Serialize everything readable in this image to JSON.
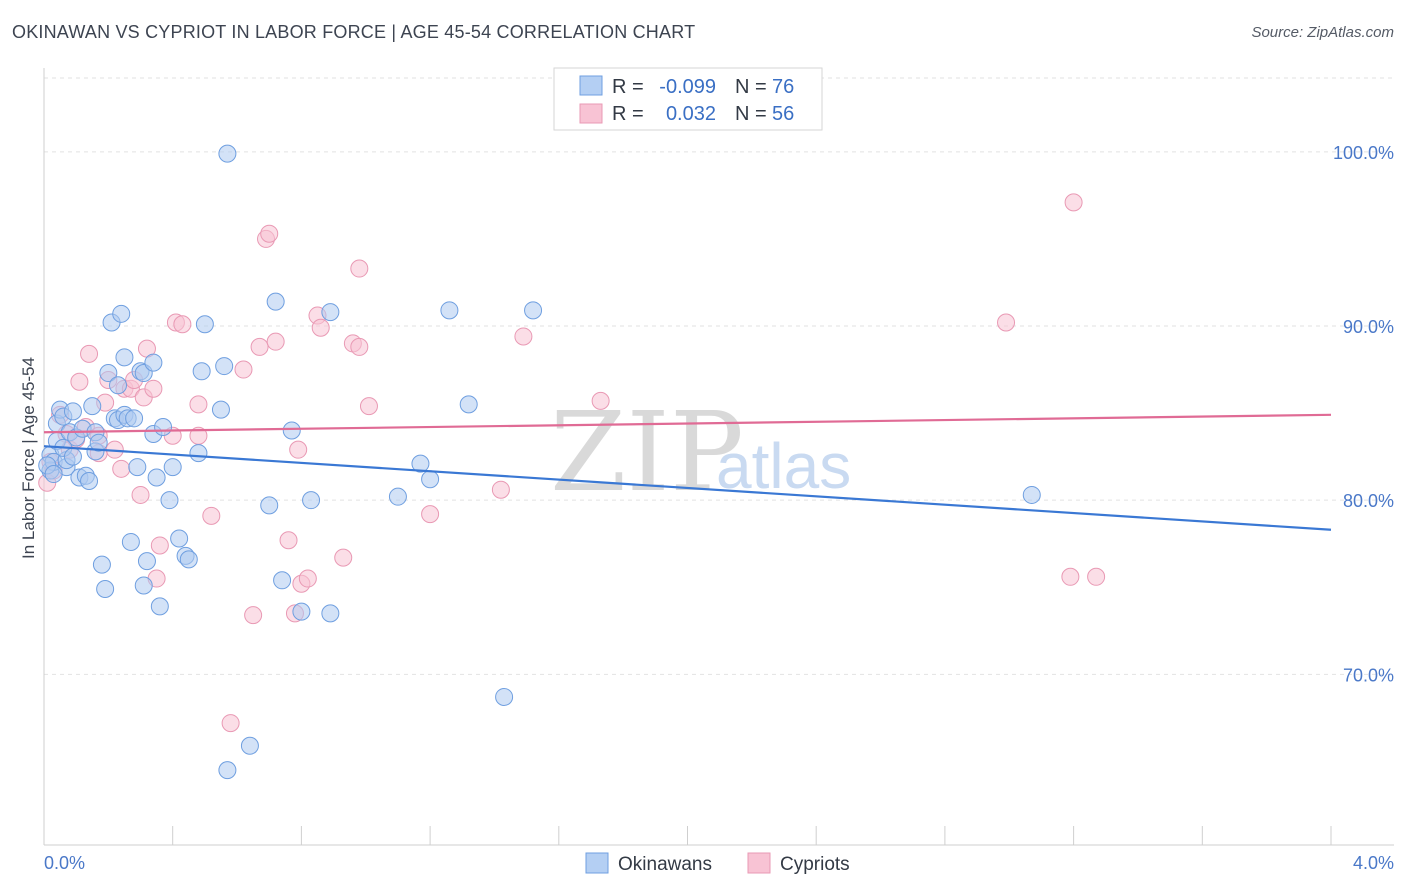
{
  "header": {
    "title": "OKINAWAN VS CYPRIOT IN LABOR FORCE | AGE 45-54 CORRELATION CHART",
    "source": "Source: ZipAtlas.com"
  },
  "watermark": {
    "zip": "ZIP",
    "atlas": "atlas"
  },
  "legend": {
    "rows": [
      {
        "r_label": "R =",
        "r_value": "-0.099",
        "n_label": "N =",
        "n_value": "76"
      },
      {
        "r_label": "R =",
        "r_value": "0.032",
        "n_label": "N =",
        "n_value": "56"
      }
    ]
  },
  "bottom_legend": {
    "series1": "Okinawans",
    "series2": "Cypriots"
  },
  "colors": {
    "okinawan_fill": "#aecbf0",
    "okinawan_stroke": "#6f9fe0",
    "okinawan_line": "#3a78d4",
    "cypriot_fill": "#f8c3d4",
    "cypriot_stroke": "#e999b4",
    "cypriot_line": "#e06b95",
    "tick_text": "#4a78c8"
  },
  "chart_data": {
    "type": "scatter",
    "title": "OKINAWAN VS CYPRIOT IN LABOR FORCE | AGE 45-54 CORRELATION CHART",
    "xlabel": "",
    "ylabel": "In Labor Force | Age 45-54",
    "x_tick_labels": [
      "0.0%",
      "4.0%"
    ],
    "y_tick_labels": [
      "100.0%",
      "90.0%",
      "80.0%",
      "70.0%"
    ],
    "y_ticks": [
      100,
      90,
      80,
      70
    ],
    "xlim": [
      0,
      4.0
    ],
    "ylim": [
      60.2,
      104.7
    ],
    "series": [
      {
        "name": "Okinawans",
        "r": -0.099,
        "n": 76,
        "trend": {
          "x": [
            0.0,
            4.0
          ],
          "y": [
            83.1,
            78.3
          ]
        },
        "points": [
          [
            0.02,
            82.6
          ],
          [
            0.02,
            81.7
          ],
          [
            0.03,
            82.2
          ],
          [
            0.04,
            83.4
          ],
          [
            0.04,
            84.4
          ],
          [
            0.05,
            85.2
          ],
          [
            0.06,
            84.8
          ],
          [
            0.07,
            81.9
          ],
          [
            0.07,
            82.3
          ],
          [
            0.08,
            83.9
          ],
          [
            0.09,
            85.1
          ],
          [
            0.1,
            83.6
          ],
          [
            0.11,
            81.3
          ],
          [
            0.12,
            84.1
          ],
          [
            0.13,
            81.4
          ],
          [
            0.14,
            81.1
          ],
          [
            0.15,
            85.4
          ],
          [
            0.16,
            83.9
          ],
          [
            0.16,
            82.8
          ],
          [
            0.17,
            83.3
          ],
          [
            0.18,
            76.3
          ],
          [
            0.19,
            74.9
          ],
          [
            0.2,
            87.3
          ],
          [
            0.21,
            90.2
          ],
          [
            0.22,
            84.7
          ],
          [
            0.23,
            84.6
          ],
          [
            0.23,
            86.6
          ],
          [
            0.24,
            90.7
          ],
          [
            0.25,
            84.9
          ],
          [
            0.25,
            88.2
          ],
          [
            0.26,
            84.7
          ],
          [
            0.27,
            77.6
          ],
          [
            0.28,
            84.7
          ],
          [
            0.29,
            81.9
          ],
          [
            0.3,
            87.4
          ],
          [
            0.31,
            75.1
          ],
          [
            0.31,
            87.3
          ],
          [
            0.32,
            76.5
          ],
          [
            0.34,
            87.9
          ],
          [
            0.34,
            83.8
          ],
          [
            0.35,
            81.3
          ],
          [
            0.36,
            73.9
          ],
          [
            0.37,
            84.2
          ],
          [
            0.39,
            80.0
          ],
          [
            0.4,
            81.9
          ],
          [
            0.42,
            77.8
          ],
          [
            0.44,
            76.8
          ],
          [
            0.45,
            76.6
          ],
          [
            0.48,
            82.7
          ],
          [
            0.49,
            87.4
          ],
          [
            0.5,
            90.1
          ],
          [
            0.55,
            85.2
          ],
          [
            0.56,
            87.7
          ],
          [
            0.57,
            64.5
          ],
          [
            0.57,
            99.9
          ],
          [
            0.64,
            65.9
          ],
          [
            0.7,
            79.7
          ],
          [
            0.72,
            91.4
          ],
          [
            0.74,
            75.4
          ],
          [
            0.77,
            84.0
          ],
          [
            0.8,
            73.6
          ],
          [
            0.83,
            80.0
          ],
          [
            0.89,
            73.5
          ],
          [
            0.89,
            90.8
          ],
          [
            1.1,
            80.2
          ],
          [
            1.17,
            82.1
          ],
          [
            1.2,
            81.2
          ],
          [
            1.26,
            90.9
          ],
          [
            1.32,
            85.5
          ],
          [
            1.43,
            68.7
          ],
          [
            1.52,
            90.9
          ],
          [
            3.07,
            80.3
          ],
          [
            0.01,
            82.0
          ],
          [
            0.03,
            81.5
          ],
          [
            0.06,
            83.0
          ],
          [
            0.09,
            82.5
          ]
        ]
      },
      {
        "name": "Cypriots",
        "r": 0.032,
        "n": 56,
        "trend": {
          "x": [
            0.0,
            4.0
          ],
          "y": [
            83.9,
            84.9
          ]
        },
        "points": [
          [
            0.01,
            81.0
          ],
          [
            0.02,
            82.2
          ],
          [
            0.03,
            81.7
          ],
          [
            0.05,
            84.9
          ],
          [
            0.07,
            83.8
          ],
          [
            0.08,
            82.9
          ],
          [
            0.1,
            83.5
          ],
          [
            0.11,
            86.8
          ],
          [
            0.13,
            84.2
          ],
          [
            0.14,
            88.4
          ],
          [
            0.17,
            83.7
          ],
          [
            0.17,
            82.7
          ],
          [
            0.19,
            85.6
          ],
          [
            0.2,
            86.9
          ],
          [
            0.22,
            82.9
          ],
          [
            0.24,
            81.8
          ],
          [
            0.25,
            86.4
          ],
          [
            0.27,
            86.4
          ],
          [
            0.28,
            86.9
          ],
          [
            0.3,
            80.3
          ],
          [
            0.31,
            85.9
          ],
          [
            0.32,
            88.7
          ],
          [
            0.34,
            86.4
          ],
          [
            0.35,
            75.5
          ],
          [
            0.36,
            77.4
          ],
          [
            0.4,
            83.7
          ],
          [
            0.41,
            90.2
          ],
          [
            0.43,
            90.1
          ],
          [
            0.48,
            85.5
          ],
          [
            0.48,
            83.7
          ],
          [
            0.52,
            79.1
          ],
          [
            0.58,
            67.2
          ],
          [
            0.62,
            87.5
          ],
          [
            0.65,
            73.4
          ],
          [
            0.67,
            88.8
          ],
          [
            0.69,
            95.0
          ],
          [
            0.7,
            95.3
          ],
          [
            0.72,
            89.1
          ],
          [
            0.76,
            77.7
          ],
          [
            0.78,
            73.5
          ],
          [
            0.79,
            82.9
          ],
          [
            0.8,
            75.2
          ],
          [
            0.82,
            75.5
          ],
          [
            0.85,
            90.6
          ],
          [
            0.86,
            89.9
          ],
          [
            0.93,
            76.7
          ],
          [
            0.96,
            89.0
          ],
          [
            0.98,
            88.8
          ],
          [
            0.98,
            93.3
          ],
          [
            1.01,
            85.4
          ],
          [
            1.2,
            79.2
          ],
          [
            1.42,
            80.6
          ],
          [
            1.49,
            89.4
          ],
          [
            1.73,
            85.7
          ],
          [
            2.99,
            90.2
          ],
          [
            3.2,
            97.1
          ]
        ],
        "extra_points": [
          [
            3.19,
            75.6
          ],
          [
            3.27,
            75.6
          ]
        ]
      }
    ]
  }
}
